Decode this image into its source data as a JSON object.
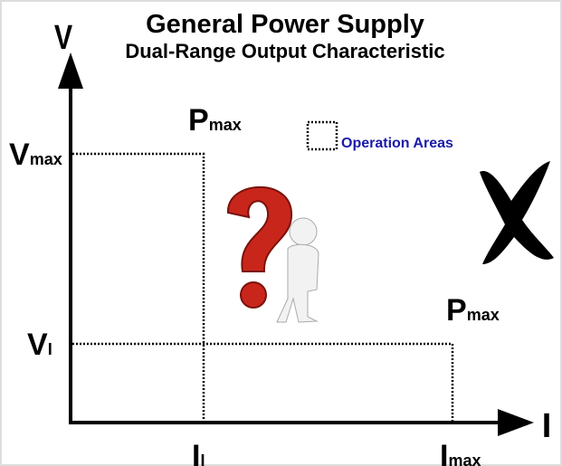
{
  "title": "General Power Supply",
  "subtitle": "Dual-Range Output Characteristic",
  "axes": {
    "y_label": "V",
    "x_label": "I"
  },
  "labels": {
    "vmax": {
      "main": "V",
      "sub": "max"
    },
    "v1": {
      "main": "V",
      "sub": "I"
    },
    "i1": {
      "main": "I",
      "sub": "I"
    },
    "imax": {
      "main": "I",
      "sub": "max"
    },
    "pmax_high": {
      "main": "P",
      "sub": "max"
    },
    "pmax_low": {
      "main": "P",
      "sub": "max"
    }
  },
  "legend": "Operation Areas"
}
